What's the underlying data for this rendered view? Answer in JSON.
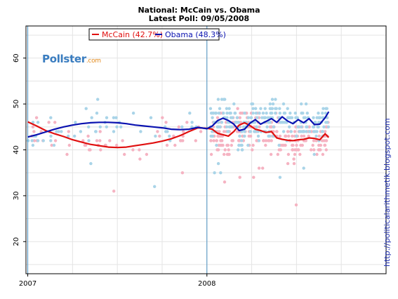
{
  "title": "National: McCain vs. Obama",
  "subtitle": "Latest Poll: 09/05/2008",
  "logo": {
    "text": "Pollster",
    "suffix": ".com"
  },
  "watermark": "http://politicalarithmetik.blogspot.com",
  "colors": {
    "mccain_line": "#e01010",
    "obama_line": "#0a12b0",
    "mccain_points": "#f5b3c2",
    "obama_points": "#a9d4e8",
    "year_markers": "#4a90c0",
    "grid": "#e4e4e4"
  },
  "chart_data": {
    "type": "line",
    "xlabel": "",
    "ylabel": "",
    "xlim": [
      2006.99,
      2009.0
    ],
    "ylim": [
      13,
      67
    ],
    "x_ticks": [
      {
        "label": "2007",
        "value": 2007.0
      },
      {
        "label": "2008",
        "value": 2008.0
      }
    ],
    "y_ticks": [
      20,
      30,
      40,
      50,
      60
    ],
    "grid": true,
    "legend_position": "top-center",
    "series": [
      {
        "name": "McCain (42.7%)",
        "color": "#e01010",
        "x": [
          2007.0,
          2007.05,
          2007.1,
          2007.15,
          2007.2,
          2007.25,
          2007.3,
          2007.35,
          2007.4,
          2007.45,
          2007.5,
          2007.55,
          2007.6,
          2007.65,
          2007.7,
          2007.75,
          2007.8,
          2007.85,
          2007.9,
          2007.95,
          2008.0,
          2008.03,
          2008.06,
          2008.09,
          2008.12,
          2008.15,
          2008.18,
          2008.21,
          2008.24,
          2008.27,
          2008.3,
          2008.33,
          2008.36,
          2008.39,
          2008.42,
          2008.45,
          2008.48,
          2008.51,
          2008.54,
          2008.57,
          2008.6,
          2008.63,
          2008.66,
          2008.68
        ],
        "y": [
          46.1,
          45.2,
          44.2,
          43.5,
          42.9,
          42.2,
          41.7,
          41.2,
          40.9,
          40.6,
          40.5,
          40.6,
          40.9,
          41.2,
          41.5,
          41.9,
          42.4,
          43.1,
          44.0,
          44.8,
          44.7,
          44.5,
          43.6,
          43.3,
          43.0,
          44.0,
          45.4,
          45.9,
          45.3,
          44.5,
          44.2,
          43.8,
          44.0,
          42.6,
          42.3,
          42.1,
          42.0,
          42.2,
          42.3,
          42.6,
          42.5,
          42.2,
          43.5,
          42.7
        ]
      },
      {
        "name": "Obama (48.3%)",
        "color": "#0a12b0",
        "x": [
          2007.0,
          2007.05,
          2007.1,
          2007.15,
          2007.2,
          2007.25,
          2007.3,
          2007.35,
          2007.4,
          2007.45,
          2007.5,
          2007.55,
          2007.6,
          2007.65,
          2007.7,
          2007.75,
          2007.8,
          2007.85,
          2007.9,
          2007.95,
          2008.0,
          2008.03,
          2008.06,
          2008.09,
          2008.12,
          2008.15,
          2008.18,
          2008.21,
          2008.24,
          2008.27,
          2008.3,
          2008.33,
          2008.36,
          2008.39,
          2008.42,
          2008.45,
          2008.48,
          2008.51,
          2008.54,
          2008.57,
          2008.6,
          2008.63,
          2008.66,
          2008.68
        ],
        "y": [
          42.8,
          43.3,
          43.9,
          44.5,
          45.0,
          45.4,
          45.7,
          45.9,
          46.0,
          46.0,
          45.9,
          45.7,
          45.4,
          45.2,
          45.0,
          44.8,
          44.5,
          44.4,
          44.5,
          44.9,
          44.6,
          45.2,
          46.4,
          46.9,
          46.4,
          45.6,
          44.2,
          44.5,
          45.8,
          46.6,
          45.6,
          46.2,
          46.8,
          46.0,
          47.2,
          46.3,
          45.7,
          46.6,
          45.9,
          46.8,
          45.5,
          45.6,
          47.0,
          48.3
        ]
      }
    ],
    "vertical_markers": [
      2007.0,
      2008.0
    ]
  }
}
